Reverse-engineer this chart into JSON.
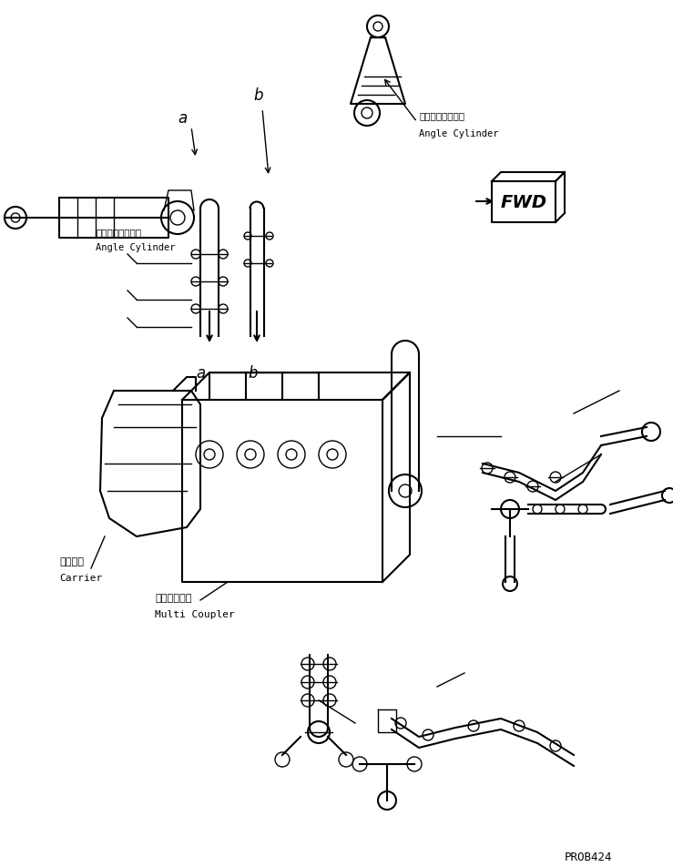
{
  "bg_color": "#ffffff",
  "line_color": "#000000",
  "text_color": "#000000",
  "part_number": "PROB424",
  "fwd_label": "FWD",
  "labels": {
    "angle_cylinder_jp": "アングルシリンダ",
    "angle_cylinder_en": "Angle Cylinder",
    "carrier_jp": "キャリア",
    "carrier_en": "Carrier",
    "multi_coupler_jp": "マルチカプラ",
    "multi_coupler_en": "Multi Coupler"
  },
  "figsize": [
    7.39,
    9.53
  ],
  "dpi": 100
}
